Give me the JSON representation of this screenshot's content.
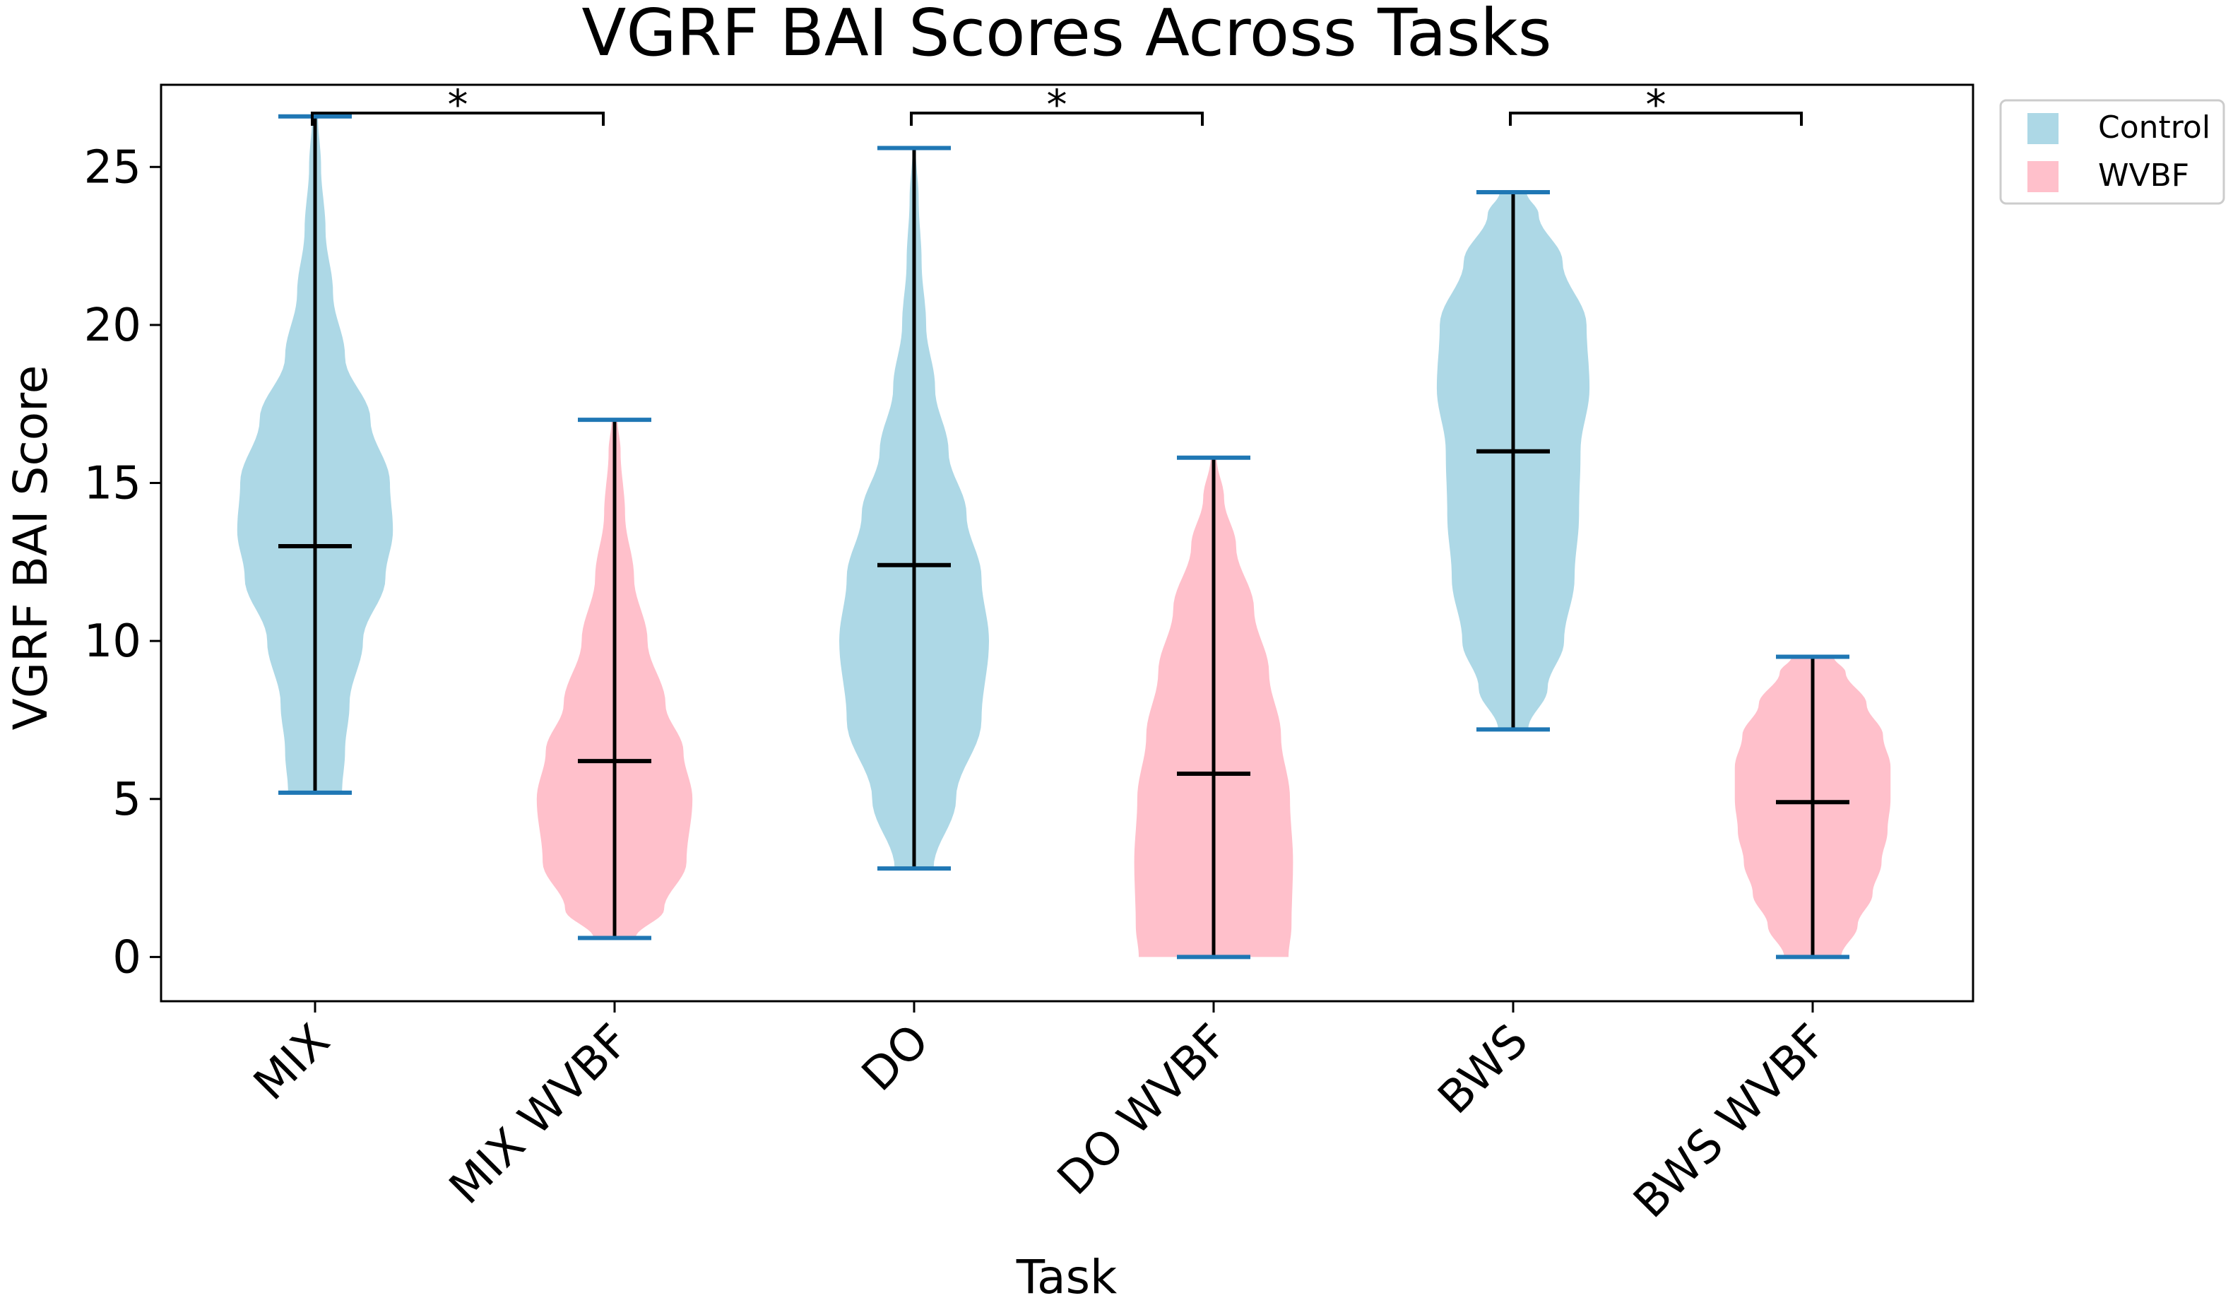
{
  "chart_data": {
    "type": "violin",
    "title": "VGRF BAI Scores Across Tasks",
    "xlabel": "Task",
    "ylabel": "VGRF BAI Score",
    "ylim": [
      -1.4,
      27.6
    ],
    "yticks": [
      0,
      5,
      10,
      15,
      20,
      25
    ],
    "categories": [
      "MIX",
      "MIX WVBF",
      "DO",
      "DO WVBF",
      "BWS",
      "BWS WVBF"
    ],
    "groups": [
      "Control",
      "WVBF",
      "Control",
      "WVBF",
      "Control",
      "WVBF"
    ],
    "colors": {
      "Control": "#add8e6",
      "WVBF": "#ffc0cb",
      "whisker": "#1f77b4",
      "median": "#000000"
    },
    "series": [
      {
        "name": "MIX",
        "group": "Control",
        "min": 5.2,
        "max": 26.6,
        "median": 13.0,
        "density": [
          [
            5.2,
            0.18
          ],
          [
            6.5,
            0.2
          ],
          [
            8,
            0.23
          ],
          [
            10,
            0.32
          ],
          [
            12,
            0.47
          ],
          [
            13.5,
            0.52
          ],
          [
            15,
            0.5
          ],
          [
            17,
            0.37
          ],
          [
            19,
            0.2
          ],
          [
            21,
            0.12
          ],
          [
            23,
            0.07
          ],
          [
            25,
            0.04
          ],
          [
            26.6,
            0.02
          ]
        ]
      },
      {
        "name": "MIX WVBF",
        "group": "WVBF",
        "min": 0.6,
        "max": 17.0,
        "median": 6.2,
        "density": [
          [
            0.6,
            0.14
          ],
          [
            1.5,
            0.33
          ],
          [
            3,
            0.48
          ],
          [
            5,
            0.52
          ],
          [
            6.5,
            0.46
          ],
          [
            8,
            0.34
          ],
          [
            10,
            0.22
          ],
          [
            12,
            0.13
          ],
          [
            14,
            0.07
          ],
          [
            16,
            0.04
          ],
          [
            17,
            0.02
          ]
        ]
      },
      {
        "name": "DO",
        "group": "Control",
        "min": 2.8,
        "max": 25.6,
        "median": 12.4,
        "density": [
          [
            2.8,
            0.13
          ],
          [
            5,
            0.28
          ],
          [
            7.5,
            0.45
          ],
          [
            10,
            0.5
          ],
          [
            12,
            0.45
          ],
          [
            14,
            0.35
          ],
          [
            16,
            0.23
          ],
          [
            18,
            0.14
          ],
          [
            20,
            0.08
          ],
          [
            22,
            0.05
          ],
          [
            24,
            0.03
          ],
          [
            25.6,
            0.01
          ]
        ]
      },
      {
        "name": "DO WVBF",
        "group": "WVBF",
        "min": 0.0,
        "max": 15.8,
        "median": 5.8,
        "density": [
          [
            0.0,
            0.5
          ],
          [
            1,
            0.52
          ],
          [
            3,
            0.53
          ],
          [
            5,
            0.51
          ],
          [
            7,
            0.45
          ],
          [
            9,
            0.37
          ],
          [
            11,
            0.27
          ],
          [
            13,
            0.15
          ],
          [
            14.5,
            0.07
          ],
          [
            15.8,
            0.02
          ]
        ]
      },
      {
        "name": "BWS",
        "group": "Control",
        "min": 7.2,
        "max": 24.2,
        "median": 16.0,
        "density": [
          [
            7.2,
            0.1
          ],
          [
            8.5,
            0.23
          ],
          [
            10,
            0.34
          ],
          [
            12,
            0.41
          ],
          [
            14,
            0.44
          ],
          [
            16,
            0.45
          ],
          [
            18,
            0.51
          ],
          [
            20,
            0.49
          ],
          [
            22,
            0.33
          ],
          [
            23.5,
            0.17
          ],
          [
            24.2,
            0.09
          ]
        ]
      },
      {
        "name": "BWS WVBF",
        "group": "WVBF",
        "min": 0.0,
        "max": 9.5,
        "median": 4.9,
        "density": [
          [
            0.0,
            0.19
          ],
          [
            1,
            0.3
          ],
          [
            2,
            0.4
          ],
          [
            3,
            0.46
          ],
          [
            4,
            0.5
          ],
          [
            5,
            0.52
          ],
          [
            6,
            0.52
          ],
          [
            7,
            0.47
          ],
          [
            8,
            0.36
          ],
          [
            9,
            0.22
          ],
          [
            9.5,
            0.14
          ]
        ]
      }
    ],
    "significance": [
      {
        "from": "MIX",
        "to": "MIX WVBF",
        "label": "*"
      },
      {
        "from": "DO",
        "to": "DO WVBF",
        "label": "*"
      },
      {
        "from": "BWS",
        "to": "BWS WVBF",
        "label": "*"
      }
    ],
    "legend": {
      "position": "outside-top-right",
      "entries": [
        {
          "label": "Control",
          "color": "#add8e6"
        },
        {
          "label": "WVBF",
          "color": "#ffc0cb"
        }
      ]
    }
  }
}
